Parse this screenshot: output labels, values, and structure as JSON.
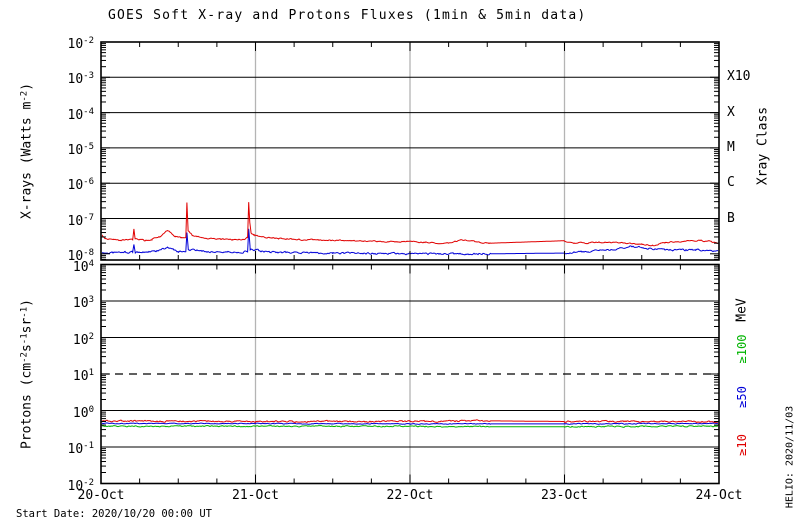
{
  "title": "GOES Soft X-ray and Protons Fluxes   (1min & 5min data)",
  "footer": {
    "start_date": "Start Date: 2020/10/20 00:00 UT",
    "watermark": "HELIO: 2020/11/03"
  },
  "palette": {
    "red": "#e00000",
    "blue": "#0000d8",
    "green": "#00b400",
    "grid_gray": "#b4b4b4",
    "axis_black": "#000000"
  },
  "x_axis": {
    "tick_labels": [
      "20-Oct",
      "21-Oct",
      "22-Oct",
      "23-Oct",
      "24-Oct"
    ],
    "span_days": 4,
    "minor_tick_hours": 6,
    "day_gridlines": [
      1,
      2,
      3
    ]
  },
  "chart_data": [
    {
      "type": "line",
      "panel": "xray",
      "ylabel_tokens": [
        [
          "t",
          "X-rays (Watts m"
        ],
        [
          "s",
          "-2"
        ],
        [
          "t",
          ")"
        ]
      ],
      "right_axis_title": "Xray Class",
      "yscale": "log",
      "ylim": [
        7e-09,
        0.01
      ],
      "y_tick_exponents": [
        -2,
        -3,
        -4,
        -5,
        -6,
        -7,
        -8
      ],
      "grid_exponents": [
        -3,
        -4,
        -5,
        -6,
        -7
      ],
      "right_class_labels": [
        {
          "label": "X10",
          "exp": -3
        },
        {
          "label": "X",
          "exp": -4
        },
        {
          "label": "M",
          "exp": -5
        },
        {
          "label": "C",
          "exp": -6
        },
        {
          "label": "B",
          "exp": -7
        }
      ],
      "series": [
        {
          "name": "series-blue",
          "color": "#0000d8",
          "noise_dec": 0.05,
          "gaps": [
            [
              2.52,
              3.0
            ]
          ],
          "keypoints": [
            [
              0,
              1.05e-08
            ],
            [
              0.15,
              1.1e-08
            ],
            [
              0.205,
              1.1e-08
            ],
            [
              0.213,
              1.9e-08
            ],
            [
              0.222,
              1.1e-08
            ],
            [
              0.35,
              1.15e-08
            ],
            [
              0.43,
              1.5e-08
            ],
            [
              0.5,
              1.15e-08
            ],
            [
              0.549,
              1.2e-08
            ],
            [
              0.556,
              4.2e-08
            ],
            [
              0.565,
              1.3e-08
            ],
            [
              0.7,
              1.15e-08
            ],
            [
              0.9,
              1.1e-08
            ],
            [
              0.949,
              1.2e-08
            ],
            [
              0.956,
              5e-08
            ],
            [
              0.966,
              1.3e-08
            ],
            [
              1.1,
              1.1e-08
            ],
            [
              1.5,
              1.05e-08
            ],
            [
              2.0,
              1e-08
            ],
            [
              2.52,
              1e-08
            ],
            [
              3.0,
              1.05e-08
            ],
            [
              3.15,
              1.15e-08
            ],
            [
              3.3,
              1.3e-08
            ],
            [
              3.42,
              1.6e-08
            ],
            [
              3.55,
              1.45e-08
            ],
            [
              3.7,
              1.25e-08
            ],
            [
              3.85,
              1.3e-08
            ],
            [
              4,
              1.2e-08
            ]
          ]
        },
        {
          "name": "series-red",
          "color": "#e00000",
          "noise_dec": 0.035,
          "gaps": [
            [
              2.52,
              3.0
            ]
          ],
          "keypoints": [
            [
              0,
              3.4e-08
            ],
            [
              0.03,
              2.7e-08
            ],
            [
              0.08,
              2.5e-08
            ],
            [
              0.13,
              2.4e-08
            ],
            [
              0.18,
              2.5e-08
            ],
            [
              0.205,
              2.5e-08
            ],
            [
              0.213,
              5.2e-08
            ],
            [
              0.221,
              2.7e-08
            ],
            [
              0.28,
              2.4e-08
            ],
            [
              0.33,
              2.6e-08
            ],
            [
              0.38,
              3e-08
            ],
            [
              0.43,
              4.6e-08
            ],
            [
              0.48,
              3.2e-08
            ],
            [
              0.52,
              2.8e-08
            ],
            [
              0.549,
              3e-08
            ],
            [
              0.556,
              2.9e-07
            ],
            [
              0.564,
              4.4e-08
            ],
            [
              0.59,
              3.4e-08
            ],
            [
              0.65,
              2.9e-08
            ],
            [
              0.75,
              2.6e-08
            ],
            [
              0.85,
              2.5e-08
            ],
            [
              0.93,
              2.6e-08
            ],
            [
              0.949,
              2.9e-08
            ],
            [
              0.956,
              2.8e-07
            ],
            [
              0.963,
              8e-08
            ],
            [
              0.971,
              4e-08
            ],
            [
              0.99,
              3.4e-08
            ],
            [
              1.06,
              3e-08
            ],
            [
              1.15,
              2.7e-08
            ],
            [
              1.3,
              2.5e-08
            ],
            [
              1.5,
              2.4e-08
            ],
            [
              1.7,
              2.3e-08
            ],
            [
              1.9,
              2.25e-08
            ],
            [
              2.1,
              2.1e-08
            ],
            [
              2.25,
              2e-08
            ],
            [
              2.36,
              2.5e-08
            ],
            [
              2.45,
              2.1e-08
            ],
            [
              2.52,
              2e-08
            ],
            [
              3.0,
              2.35e-08
            ],
            [
              3.06,
              2e-08
            ],
            [
              3.2,
              2.1e-08
            ],
            [
              3.35,
              2.1e-08
            ],
            [
              3.5,
              1.9e-08
            ],
            [
              3.57,
              1.7e-08
            ],
            [
              3.65,
              2.1e-08
            ],
            [
              3.78,
              2.3e-08
            ],
            [
              3.88,
              2.4e-08
            ],
            [
              3.95,
              2.2e-08
            ],
            [
              4,
              1.9e-08
            ]
          ]
        }
      ]
    },
    {
      "type": "line",
      "panel": "protons",
      "ylabel_tokens": [
        [
          "t",
          "Protons (cm"
        ],
        [
          "s",
          "-2"
        ],
        [
          "t",
          "s"
        ],
        [
          "s",
          "-1"
        ],
        [
          "t",
          "sr"
        ],
        [
          "s",
          "-1"
        ],
        [
          "t",
          ")"
        ]
      ],
      "right_axis_title": "MeV",
      "yscale": "log",
      "ylim": [
        0.01,
        10000.0
      ],
      "y_tick_exponents": [
        4,
        3,
        2,
        1,
        0,
        -1,
        -2
      ],
      "grid_exponents": [
        3,
        2,
        0,
        -1
      ],
      "threshold": {
        "value": 10,
        "style": "dashed"
      },
      "legend": [
        {
          "label": "≥100",
          "color": "#00b400"
        },
        {
          "label": "≥50",
          "color": "#0000d8"
        },
        {
          "label": "≥10",
          "color": "#e00000"
        }
      ],
      "series": [
        {
          "name": "protons-ge100MeV",
          "color": "#00b400",
          "noise_dec": 0.03,
          "gaps": [
            [
              2.52,
              3.0
            ]
          ],
          "keypoints": [
            [
              0,
              0.37
            ],
            [
              1,
              0.37
            ],
            [
              2,
              0.37
            ],
            [
              2.52,
              0.36
            ],
            [
              3,
              0.36
            ],
            [
              4,
              0.37
            ]
          ]
        },
        {
          "name": "protons-ge50MeV",
          "color": "#0000d8",
          "noise_dec": 0.022,
          "gaps": [
            [
              2.52,
              3.0
            ]
          ],
          "keypoints": [
            [
              0,
              0.44
            ],
            [
              1,
              0.44
            ],
            [
              2,
              0.43
            ],
            [
              2.52,
              0.43
            ],
            [
              3,
              0.43
            ],
            [
              4,
              0.44
            ]
          ]
        },
        {
          "name": "protons-ge10MeV",
          "color": "#e00000",
          "noise_dec": 0.04,
          "gaps": [
            [
              2.52,
              3.0
            ]
          ],
          "keypoints": [
            [
              0,
              0.52
            ],
            [
              1,
              0.5
            ],
            [
              2,
              0.5
            ],
            [
              2.52,
              0.52
            ],
            [
              3,
              0.5
            ],
            [
              4,
              0.5
            ]
          ]
        }
      ]
    }
  ]
}
